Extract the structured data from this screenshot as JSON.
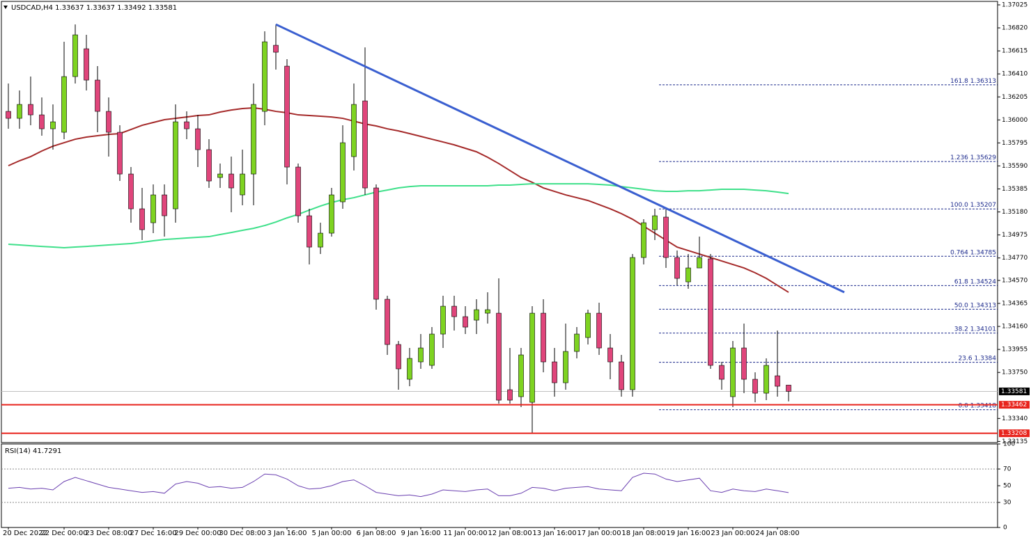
{
  "chart_data": {
    "type": "candlestick",
    "symbol": "USDCAD,H4",
    "bull_color": "#7ed321",
    "bear_color": "#e0457b",
    "categories": [
      "20 Dec 2022",
      null,
      null,
      null,
      null,
      "22 Dec 00:00",
      null,
      null,
      null,
      "23 Dec 08:00",
      null,
      null,
      null,
      "27 Dec 16:00",
      null,
      null,
      null,
      "29 Dec 00:00",
      null,
      null,
      null,
      "30 Dec 08:00",
      null,
      null,
      null,
      "3 Jan 16:00",
      null,
      null,
      null,
      "5 Jan 00:00",
      null,
      null,
      null,
      "6 Jan 08:00",
      null,
      null,
      null,
      "9 Jan 16:00",
      null,
      null,
      null,
      "11 Jan 00:00",
      null,
      null,
      null,
      "12 Jan 08:00",
      null,
      null,
      null,
      "13 Jan 16:00",
      null,
      null,
      null,
      "17 Jan 00:00",
      null,
      null,
      null,
      "18 Jan 08:00",
      null,
      null,
      null,
      "19 Jan 16:00",
      null,
      null,
      null,
      "23 Jan 00:00",
      null,
      null,
      null,
      "24 Jan 08:00",
      null
    ],
    "candles": [
      [
        1.36076,
        1.36324,
        1.35921,
        1.36014
      ],
      [
        1.36014,
        1.36262,
        1.35921,
        1.36138
      ],
      [
        1.36138,
        1.36386,
        1.35952,
        1.36045
      ],
      [
        1.36045,
        1.362,
        1.35859,
        1.35921
      ],
      [
        1.35921,
        1.36138,
        1.35735,
        1.35983
      ],
      [
        1.3589,
        1.36696,
        1.35828,
        1.36386
      ],
      [
        1.36386,
        1.36851,
        1.36324,
        1.36758
      ],
      [
        1.36634,
        1.36758,
        1.36262,
        1.36355
      ],
      [
        1.36355,
        1.36479,
        1.3589,
        1.36076
      ],
      [
        1.36076,
        1.362,
        1.35673,
        1.3589
      ],
      [
        1.3589,
        1.35952,
        1.35456,
        1.35518
      ],
      [
        1.35518,
        1.3558,
        1.35084,
        1.35208
      ],
      [
        1.35208,
        1.35394,
        1.34929,
        1.35022
      ],
      [
        1.35084,
        1.35425,
        1.34991,
        1.35332
      ],
      [
        1.35332,
        1.35425,
        1.3496,
        1.35146
      ],
      [
        1.35208,
        1.36138,
        1.35084,
        1.35983
      ],
      [
        1.35983,
        1.36076,
        1.35828,
        1.35921
      ],
      [
        1.35921,
        1.36045,
        1.3558,
        1.35735
      ],
      [
        1.35735,
        1.35828,
        1.35394,
        1.35456
      ],
      [
        1.35487,
        1.35611,
        1.35394,
        1.35518
      ],
      [
        1.35518,
        1.35673,
        1.35177,
        1.35394
      ],
      [
        1.35332,
        1.35735,
        1.35239,
        1.35518
      ],
      [
        1.35518,
        1.36324,
        1.35239,
        1.36138
      ],
      [
        1.36076,
        1.36789,
        1.35952,
        1.36696
      ],
      [
        1.36665,
        1.36851,
        1.36448,
        1.36603
      ],
      [
        1.36479,
        1.36541,
        1.35425,
        1.3558
      ],
      [
        1.3558,
        1.35611,
        1.35084,
        1.35146
      ],
      [
        1.35146,
        1.35208,
        1.34712,
        1.34867
      ],
      [
        1.34867,
        1.35084,
        1.34805,
        1.34991
      ],
      [
        1.34991,
        1.35394,
        1.3496,
        1.35332
      ],
      [
        1.3527,
        1.35952,
        1.35208,
        1.35797
      ],
      [
        1.35673,
        1.36324,
        1.35549,
        1.36138
      ],
      [
        1.36169,
        1.36646,
        1.35332,
        1.35394
      ],
      [
        1.35394,
        1.35425,
        1.34309,
        1.34402
      ],
      [
        1.34402,
        1.34433,
        1.33906,
        1.33999
      ],
      [
        1.33999,
        1.3403,
        1.33596,
        1.33782
      ],
      [
        1.33689,
        1.33968,
        1.33627,
        1.33875
      ],
      [
        1.33844,
        1.34092,
        1.33782,
        1.33968
      ],
      [
        1.33813,
        1.34154,
        1.33782,
        1.34092
      ],
      [
        1.34092,
        1.34433,
        1.33968,
        1.3434
      ],
      [
        1.3434,
        1.34433,
        1.34123,
        1.34247
      ],
      [
        1.34247,
        1.3434,
        1.34092,
        1.34154
      ],
      [
        1.34216,
        1.34402,
        1.34092,
        1.34309
      ],
      [
        1.34278,
        1.34464,
        1.34185,
        1.34309
      ],
      [
        1.34278,
        1.34588,
        1.33472,
        1.33503
      ],
      [
        1.33596,
        1.33968,
        1.33472,
        1.33503
      ],
      [
        1.33534,
        1.33968,
        1.33441,
        1.33906
      ],
      [
        1.33484,
        1.3434,
        1.33208,
        1.34278
      ],
      [
        1.34278,
        1.34402,
        1.33751,
        1.33844
      ],
      [
        1.33844,
        1.33968,
        1.33534,
        1.33658
      ],
      [
        1.33658,
        1.34185,
        1.33596,
        1.33937
      ],
      [
        1.33937,
        1.34154,
        1.33875,
        1.34092
      ],
      [
        1.34061,
        1.34309,
        1.33999,
        1.34278
      ],
      [
        1.34278,
        1.34371,
        1.33906,
        1.33968
      ],
      [
        1.33968,
        1.34092,
        1.33689,
        1.33844
      ],
      [
        1.33844,
        1.33906,
        1.33534,
        1.33596
      ],
      [
        1.33596,
        1.34805,
        1.33534,
        1.34774
      ],
      [
        1.34774,
        1.35115,
        1.34712,
        1.35084
      ],
      [
        1.35022,
        1.35208,
        1.34929,
        1.35146
      ],
      [
        1.35134,
        1.3522,
        1.34681,
        1.34774
      ],
      [
        1.34774,
        1.34836,
        1.34526,
        1.34588
      ],
      [
        1.34557,
        1.34805,
        1.34495,
        1.34681
      ],
      [
        1.34681,
        1.3496,
        1.34681,
        1.34774
      ],
      [
        1.34762,
        1.34805,
        1.33782,
        1.33813
      ],
      [
        1.33813,
        1.33844,
        1.33596,
        1.33689
      ],
      [
        1.33534,
        1.3403,
        1.33441,
        1.33968
      ],
      [
        1.33968,
        1.34185,
        1.33565,
        1.33689
      ],
      [
        1.33689,
        1.33751,
        1.33484,
        1.33565
      ],
      [
        1.33565,
        1.33875,
        1.33503,
        1.33813
      ],
      [
        1.3372,
        1.34123,
        1.33534,
        1.33627
      ],
      [
        1.33637,
        1.33637,
        1.33492,
        1.33581
      ]
    ],
    "ylim": [
      1.33125,
      1.37056
    ],
    "yticks": [
      1.37025,
      {
        "value": 1.3682,
        "label": "1.36820"
      },
      1.36615,
      {
        "value": 1.3641,
        "label": "1.36410"
      },
      1.36205,
      {
        "value": 1.36,
        "label": "1.36000"
      },
      1.35795,
      {
        "value": 1.3559,
        "label": "1.35590"
      },
      1.35385,
      {
        "value": 1.3518,
        "label": "1.35180"
      },
      1.34975,
      {
        "value": 1.3477,
        "label": "1.34770"
      },
      {
        "value": 1.3457,
        "label": "1.34570"
      },
      1.34365,
      {
        "value": 1.3416,
        "label": "1.34160"
      },
      1.33955,
      {
        "value": 1.3375,
        "label": "1.33750"
      },
      {
        "value": 1.3334,
        "label": "1.33340"
      },
      1.33135
    ],
    "series": [
      {
        "color": "#a52a2a",
        "values": [
          1.35592,
          1.35636,
          1.35673,
          1.35723,
          1.35766,
          1.35797,
          1.35828,
          1.35847,
          1.35859,
          1.35871,
          1.35878,
          1.35915,
          1.35952,
          1.35977,
          1.36002,
          1.36014,
          1.36026,
          1.36039,
          1.36045,
          1.3607,
          1.36088,
          1.36101,
          1.36107,
          1.36095,
          1.36076,
          1.36064,
          1.36045,
          1.36039,
          1.36033,
          1.36026,
          1.36014,
          1.35989,
          1.35964,
          1.35946,
          1.35921,
          1.35902,
          1.35878,
          1.35853,
          1.35828,
          1.35803,
          1.35778,
          1.35747,
          1.35716,
          1.35667,
          1.35611,
          1.35549,
          1.35487,
          1.35444,
          1.35394,
          1.35363,
          1.35332,
          1.35307,
          1.35282,
          1.35245,
          1.35208,
          1.35165,
          1.35115,
          1.35053,
          1.34991,
          1.34929,
          1.34867,
          1.34836,
          1.34805,
          1.34774,
          1.34743,
          1.34712,
          1.34681,
          1.34638,
          1.34588,
          1.34526,
          1.34464
        ]
      },
      {
        "color": "#3ee08a",
        "values": [
          1.34892,
          1.34886,
          1.34879,
          1.34873,
          1.34867,
          1.34861,
          1.34867,
          1.34873,
          1.34879,
          1.34886,
          1.34892,
          1.34898,
          1.3491,
          1.34923,
          1.34935,
          1.34941,
          1.34948,
          1.34954,
          1.3496,
          1.34979,
          1.34997,
          1.35016,
          1.35034,
          1.35059,
          1.3509,
          1.35127,
          1.35158,
          1.35196,
          1.35233,
          1.35264,
          1.35289,
          1.35307,
          1.35332,
          1.35357,
          1.35375,
          1.35394,
          1.35406,
          1.35413,
          1.35413,
          1.35413,
          1.35413,
          1.35413,
          1.35413,
          1.35413,
          1.35419,
          1.35419,
          1.35425,
          1.35431,
          1.35431,
          1.35431,
          1.35431,
          1.35431,
          1.35431,
          1.35425,
          1.35419,
          1.35406,
          1.35394,
          1.35382,
          1.35369,
          1.35363,
          1.35363,
          1.35369,
          1.35369,
          1.35375,
          1.35382,
          1.35382,
          1.35382,
          1.35375,
          1.35369,
          1.35357,
          1.35344
        ]
      }
    ],
    "trendline": {
      "color": "#3a5fd0",
      "start_index": 24,
      "start": 1.36851,
      "end_index": 75,
      "end": 1.34464
    },
    "levels": [
      {
        "value": 1.33462,
        "color": "#e8231c"
      },
      {
        "value": 1.33208,
        "color": "#e8231c"
      }
    ],
    "fib": {
      "color": "#1c2a8c",
      "levels": [
        {
          "ratio": "161.8",
          "price": 1.36313
        },
        {
          "ratio": "1.236",
          "price": 1.35629
        },
        {
          "ratio": "100.0",
          "price": 1.35207
        },
        {
          "ratio": "0.764",
          "price": 1.34785
        },
        {
          "ratio": "61.8",
          "price": 1.34524
        },
        {
          "ratio": "50.0",
          "price": 1.34313
        },
        {
          "ratio": "38.2",
          "price": 1.34101
        },
        {
          "ratio": "23.6",
          "price": 1.3384
        },
        {
          "ratio": "0.0",
          "price": 1.33418
        }
      ]
    },
    "rsi": {
      "title": "RSI(14)",
      "color": "#6a3fb0",
      "ylim": [
        0,
        100
      ],
      "yticks": [
        100,
        70,
        50,
        30,
        0
      ],
      "levels": [
        70,
        30
      ],
      "values": [
        47,
        48,
        46,
        47,
        45,
        55,
        60,
        56,
        52,
        48,
        46,
        44,
        42,
        43,
        41,
        52,
        55,
        53,
        48,
        49,
        47,
        48,
        55,
        64,
        63,
        58,
        50,
        46,
        47,
        50,
        55,
        57,
        50,
        42,
        40,
        38,
        39,
        37,
        40,
        45,
        44,
        43,
        45,
        46,
        38,
        38,
        41,
        48,
        47,
        44,
        47,
        48,
        49,
        46,
        45,
        44,
        60,
        65,
        64,
        58,
        55,
        57,
        59,
        44,
        42,
        46,
        44,
        43,
        46,
        44,
        41.7291
      ]
    }
  }
}
